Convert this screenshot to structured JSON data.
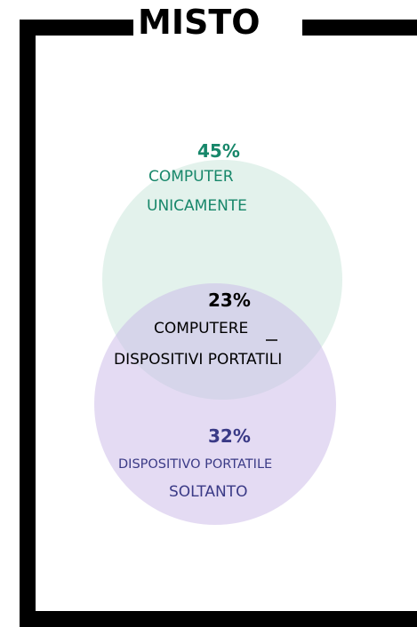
{
  "title": "MISTO",
  "groups": [
    {
      "percent": "45%",
      "label_lines": [
        "COMPUTER",
        "UNICAMENTE"
      ]
    },
    {
      "percent": "23%",
      "label_lines": [
        "COMPUTERE",
        "DISPOSITIVI PORTATILI"
      ]
    },
    {
      "percent": "32%",
      "label_lines": [
        "DISPOSITIVO PORTATILE",
        "SOLTANTO"
      ]
    }
  ]
}
